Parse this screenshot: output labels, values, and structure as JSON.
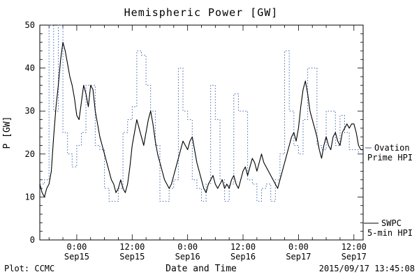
{
  "header": {
    "title": "Hemispheric Power [GW]"
  },
  "footer": {
    "plot_credit": "Plot: CCMC",
    "timestamp": "2015/09/17 13:45:08"
  },
  "axes": {
    "ylabel": "P [GW]",
    "xlabel": "Date and Time",
    "y_ticks": [
      0,
      10,
      20,
      30,
      40,
      50
    ],
    "x_ticks": [
      {
        "t": 8,
        "time": "0:00",
        "date": "Sep15"
      },
      {
        "t": 20,
        "time": "12:00",
        "date": "Sep15"
      },
      {
        "t": 32,
        "time": "0:00",
        "date": "Sep16"
      },
      {
        "t": 44,
        "time": "12:00",
        "date": "Sep16"
      },
      {
        "t": 56,
        "time": "0:00",
        "date": "Sep17"
      },
      {
        "t": 68,
        "time": "12:00",
        "date": "Sep17"
      }
    ]
  },
  "legend": {
    "ovation_line1": "Ovation",
    "ovation_line2": "Prime HPI",
    "swpc_line1": "SWPC",
    "swpc_line2": "5-min HPI"
  },
  "colors": {
    "ovation": "#3d63ae",
    "swpc": "#000000"
  },
  "chart_data": {
    "type": "line",
    "title": "Hemispheric Power [GW]",
    "xlabel": "Date and Time",
    "ylabel": "P [GW]",
    "ylim": [
      0,
      50
    ],
    "x_range_hours": [
      0,
      70
    ],
    "x_tick_hours": [
      8,
      20,
      32,
      44,
      56,
      68
    ],
    "x_tick_labels": [
      "0:00 Sep15",
      "12:00 Sep15",
      "0:00 Sep16",
      "12:00 Sep16",
      "0:00 Sep17",
      "12:00 Sep17"
    ],
    "grid": false,
    "legend_position": "right-outside",
    "series": [
      {
        "name": "Ovation Prime HPI",
        "style": "dotted-step",
        "color": "#3d63ae",
        "t0": 0,
        "dt": 1,
        "values": [
          13,
          14,
          50,
          30,
          50,
          25,
          20,
          17,
          22,
          25,
          36,
          36,
          22,
          21,
          12,
          9,
          9,
          12,
          25,
          28,
          31,
          44,
          43,
          36,
          30,
          22,
          9,
          9,
          12,
          14,
          40,
          30,
          28,
          14,
          12,
          9,
          13,
          36,
          28,
          14,
          9,
          13,
          34,
          30,
          30,
          14,
          13,
          9,
          12,
          13,
          9,
          14,
          20,
          44,
          30,
          22,
          20,
          28,
          40,
          40,
          22,
          21,
          30,
          30,
          22,
          29,
          25,
          21,
          21,
          20,
          20
        ]
      },
      {
        "name": "SWPC 5-min HPI",
        "style": "solid",
        "color": "#000000",
        "t0": 0,
        "dt": 0.5,
        "values": [
          13,
          11,
          10,
          12,
          13,
          16,
          24,
          31,
          36,
          42,
          46,
          44,
          41,
          38,
          36,
          33,
          29,
          28,
          32,
          36,
          34,
          31,
          36,
          35,
          30,
          27,
          24,
          22,
          20,
          18,
          16,
          14,
          13,
          11,
          12,
          14,
          12,
          11,
          13,
          17,
          22,
          25,
          28,
          26,
          24,
          22,
          25,
          28,
          30,
          27,
          23,
          20,
          18,
          16,
          14,
          13,
          12,
          13,
          15,
          17,
          19,
          21,
          23,
          22,
          21,
          23,
          24,
          21,
          18,
          16,
          14,
          12,
          11,
          13,
          14,
          15,
          13,
          12,
          13,
          14,
          12,
          13,
          12,
          14,
          15,
          13,
          12,
          14,
          16,
          17,
          15,
          17,
          19,
          18,
          16,
          18,
          20,
          18,
          17,
          16,
          15,
          14,
          13,
          12,
          14,
          16,
          18,
          20,
          22,
          24,
          25,
          23,
          26,
          31,
          35,
          37,
          34,
          30,
          28,
          26,
          24,
          21,
          19,
          22,
          24,
          22,
          21,
          24,
          25,
          23,
          22,
          25,
          26,
          27,
          26,
          27,
          27,
          25,
          22,
          21,
          21
        ]
      }
    ]
  }
}
